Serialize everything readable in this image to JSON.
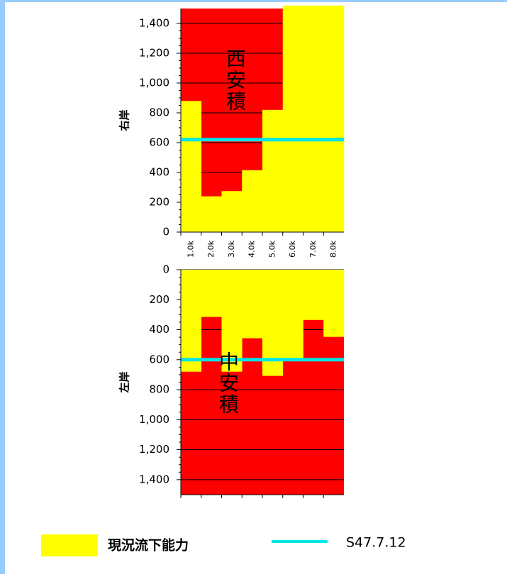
{
  "chart_data": [
    {
      "type": "bar",
      "axis_label": "右岸",
      "annotation": "西安積",
      "categories": [
        "1.0k",
        "2.0k",
        "3.0k",
        "4.0k",
        "5.0k",
        "6.0k",
        "7.0k",
        "8.0k"
      ],
      "series": [
        {
          "name": "現況流下能力",
          "color": "#ffff00",
          "values": [
            880,
            240,
            275,
            415,
            820,
            1520,
            1520,
            1520
          ]
        },
        {
          "name": "S47.7.12",
          "color": "#00e5e5",
          "value": 620
        }
      ],
      "background_color": "#ff0000",
      "inverted": false,
      "ylim": [
        0,
        1500
      ],
      "yticks": [
        0,
        200,
        400,
        600,
        800,
        {
          "value": 1000,
          "label": "1,000"
        },
        {
          "value": 1200,
          "label": "1,200"
        },
        {
          "value": 1400,
          "label": "1,400"
        }
      ],
      "grid": true
    },
    {
      "type": "bar",
      "axis_label": "左岸",
      "annotation": "中安積",
      "series": [
        {
          "color": "#ffff00",
          "values": [
            680,
            315,
            680,
            457,
            708,
            600,
            335,
            448
          ]
        },
        {
          "color": "#00e5e5",
          "value": 600
        }
      ],
      "background_color": "#ff0000",
      "inverted": true,
      "ylim": [
        0,
        1500
      ],
      "yticks": [
        0,
        200,
        400,
        600,
        800,
        {
          "value": 1000,
          "label": "1,000"
        },
        {
          "value": 1200,
          "label": "1,200"
        },
        {
          "value": 1400,
          "label": "1,400"
        }
      ],
      "grid": true
    }
  ]
}
